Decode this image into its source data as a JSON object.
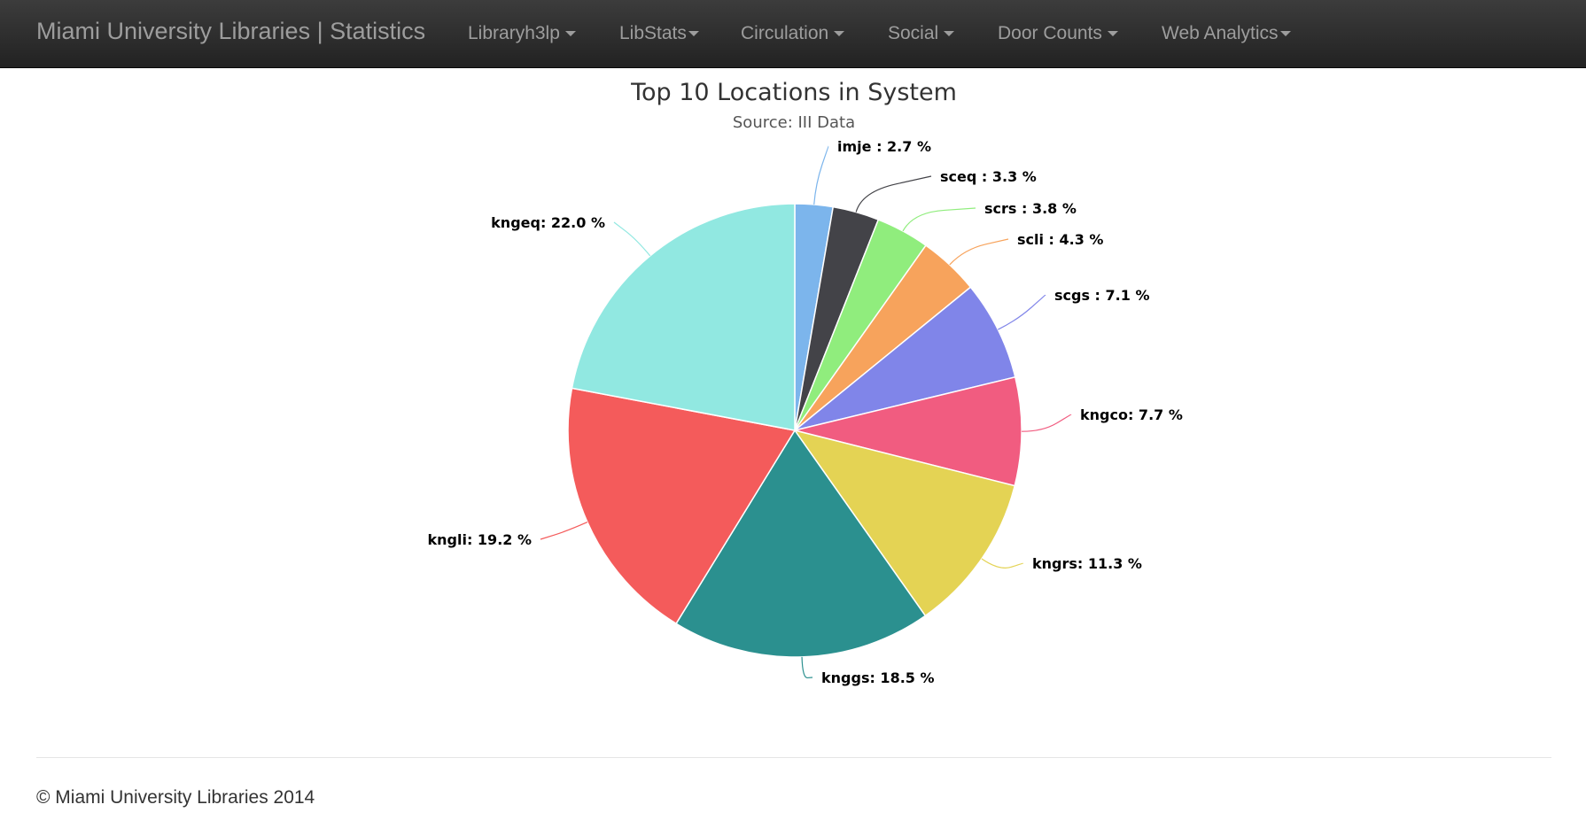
{
  "navbar": {
    "brand": "Miami University Libraries | Statistics",
    "items": [
      {
        "label": "Libraryh3lp"
      },
      {
        "label": "LibStats"
      },
      {
        "label": "Circulation"
      },
      {
        "label": "Social"
      },
      {
        "label": "Door Counts"
      },
      {
        "label": "Web Analytics"
      }
    ]
  },
  "chart_data": {
    "type": "pie",
    "title": "Top 10 Locations in System",
    "subtitle": "Source: III Data",
    "slices": [
      {
        "name": "imje",
        "value": 2.7,
        "label": "imje : 2.7 %",
        "color": "#7cb5ec"
      },
      {
        "name": "sceq",
        "value": 3.3,
        "label": "sceq : 3.3 %",
        "color": "#434348"
      },
      {
        "name": "scrs",
        "value": 3.8,
        "label": "scrs : 3.8 %",
        "color": "#90ed7d"
      },
      {
        "name": "scli",
        "value": 4.3,
        "label": "scli : 4.3 %",
        "color": "#f7a35c"
      },
      {
        "name": "scgs",
        "value": 7.1,
        "label": "scgs : 7.1 %",
        "color": "#8085e9"
      },
      {
        "name": "kngco",
        "value": 7.7,
        "label": "kngco: 7.7 %",
        "color": "#f15c80"
      },
      {
        "name": "kngrs",
        "value": 11.3,
        "label": "kngrs: 11.3 %",
        "color": "#e4d354"
      },
      {
        "name": "knggs",
        "value": 18.5,
        "label": "knggs: 18.5 %",
        "color": "#2b908f"
      },
      {
        "name": "kngli",
        "value": 19.2,
        "label": "kngli: 19.2 %",
        "color": "#f45b5b"
      },
      {
        "name": "kngeq",
        "value": 22.0,
        "label": "kngeq: 22.0 %",
        "color": "#91e8e1"
      }
    ]
  },
  "footer": {
    "copyright": "© Miami University Libraries 2014"
  }
}
